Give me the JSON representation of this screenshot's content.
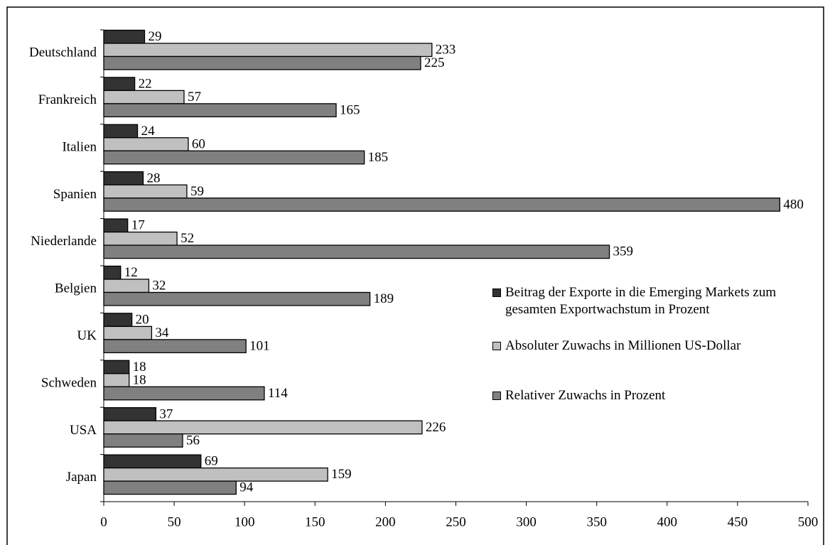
{
  "chart_data": {
    "type": "bar",
    "orientation": "horizontal",
    "categories": [
      "Deutschland",
      "Frankreich",
      "Italien",
      "Spanien",
      "Niederlande",
      "Belgien",
      "UK",
      "Schweden",
      "USA",
      "Japan"
    ],
    "series": [
      {
        "name": "Beitrag der Exporte in die Emerging Markets zum gesamten Exportwachstum in Prozent",
        "color": "#333333",
        "values": [
          29,
          22,
          24,
          28,
          17,
          12,
          20,
          18,
          37,
          69
        ]
      },
      {
        "name": "Absoluter Zuwachs in Millionen US-Dollar",
        "color": "#c0c0c0",
        "values": [
          233,
          57,
          60,
          59,
          52,
          32,
          34,
          18,
          226,
          159
        ]
      },
      {
        "name": "Relativer Zuwachs in Prozent",
        "color": "#808080",
        "values": [
          225,
          165,
          185,
          480,
          359,
          189,
          101,
          114,
          56,
          94
        ]
      }
    ],
    "xlim": [
      0,
      500
    ],
    "xticks": [
      0,
      50,
      100,
      150,
      200,
      250,
      300,
      350,
      400,
      450,
      500
    ],
    "data_labels": true,
    "legend": "right"
  }
}
